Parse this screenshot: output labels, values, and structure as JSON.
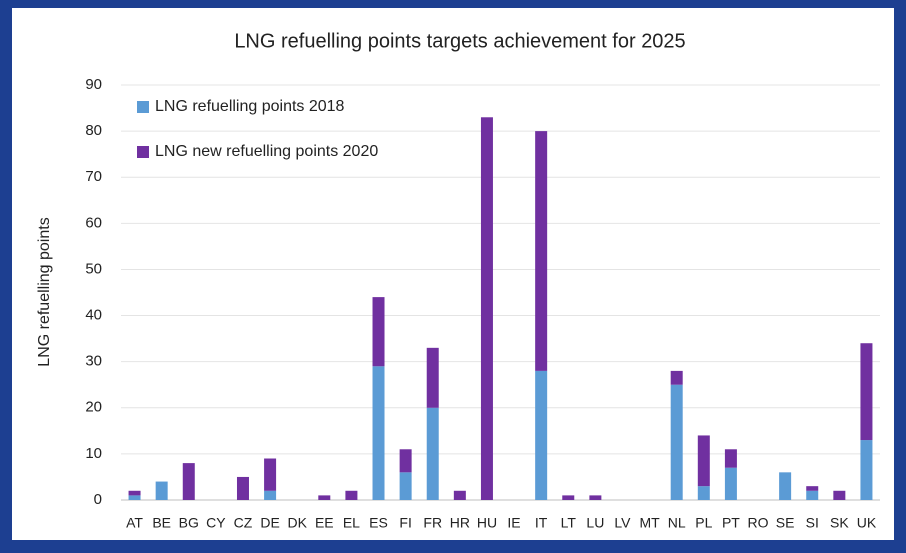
{
  "chart_data": {
    "type": "stacked_bar",
    "title": "LNG refuelling points targets achievement for 2025",
    "y_label": "LNG refuelling points",
    "categories": [
      "AT",
      "BE",
      "BG",
      "CY",
      "CZ",
      "DE",
      "DK",
      "EE",
      "EL",
      "ES",
      "FI",
      "FR",
      "HR",
      "HU",
      "IE",
      "IT",
      "LT",
      "LU",
      "LV",
      "MT",
      "NL",
      "PL",
      "PT",
      "RO",
      "SE",
      "SI",
      "SK",
      "UK"
    ],
    "series": [
      {
        "name": "LNG refuelling points 2018",
        "color": "#5b9bd5",
        "values": [
          1,
          4,
          0,
          0,
          0,
          2,
          0,
          0,
          0,
          29,
          6,
          20,
          0,
          0,
          0,
          28,
          0,
          0,
          0,
          0,
          25,
          3,
          7,
          0,
          6,
          2,
          0,
          13
        ]
      },
      {
        "name": "LNG new refuelling points 2020",
        "color": "#7030a0",
        "values": [
          1,
          0,
          8,
          0,
          5,
          7,
          0,
          1,
          2,
          15,
          5,
          13,
          2,
          83,
          0,
          52,
          1,
          1,
          0,
          0,
          3,
          11,
          4,
          0,
          0,
          1,
          2,
          21
        ]
      }
    ],
    "ylim": [
      0,
      90
    ],
    "yticks": [
      0,
      10,
      20,
      30,
      40,
      50,
      60,
      70,
      80,
      90
    ],
    "grid": true,
    "legend": "top-left"
  }
}
